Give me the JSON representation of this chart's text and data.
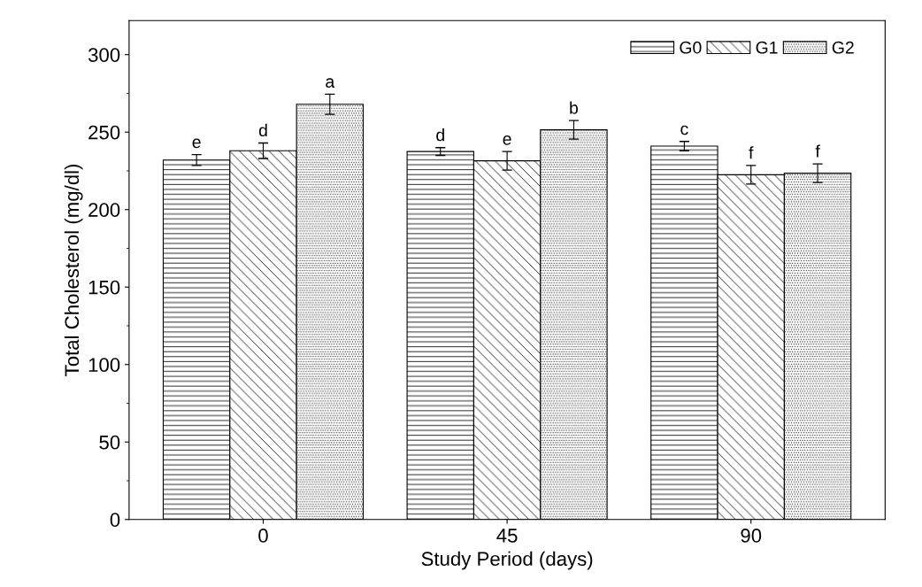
{
  "chart_data": {
    "type": "bar",
    "xlabel": "Study Period (days)",
    "ylabel": "Total Cholesterol (mg/dl)",
    "categories": [
      "0",
      "45",
      "90"
    ],
    "series": [
      {
        "name": "G0",
        "color": "#000000",
        "values": [
          232,
          237.5,
          241
        ],
        "errors": [
          3.5,
          2.5,
          3
        ]
      },
      {
        "name": "G1",
        "color": "#000000",
        "values": [
          238,
          231.5,
          222.5
        ],
        "errors": [
          5,
          6,
          6
        ]
      },
      {
        "name": "G2",
        "color": "#000000",
        "values": [
          268,
          251.5,
          223.5
        ],
        "errors": [
          6.5,
          6,
          6
        ]
      }
    ],
    "annotations": [
      "e",
      "d",
      "a",
      "d",
      "e",
      "b",
      "c",
      "f",
      "f"
    ],
    "ylim": [
      0,
      322
    ],
    "yticks": [
      0,
      50,
      100,
      150,
      200,
      250,
      300
    ],
    "grid": false,
    "legend": "top right"
  }
}
